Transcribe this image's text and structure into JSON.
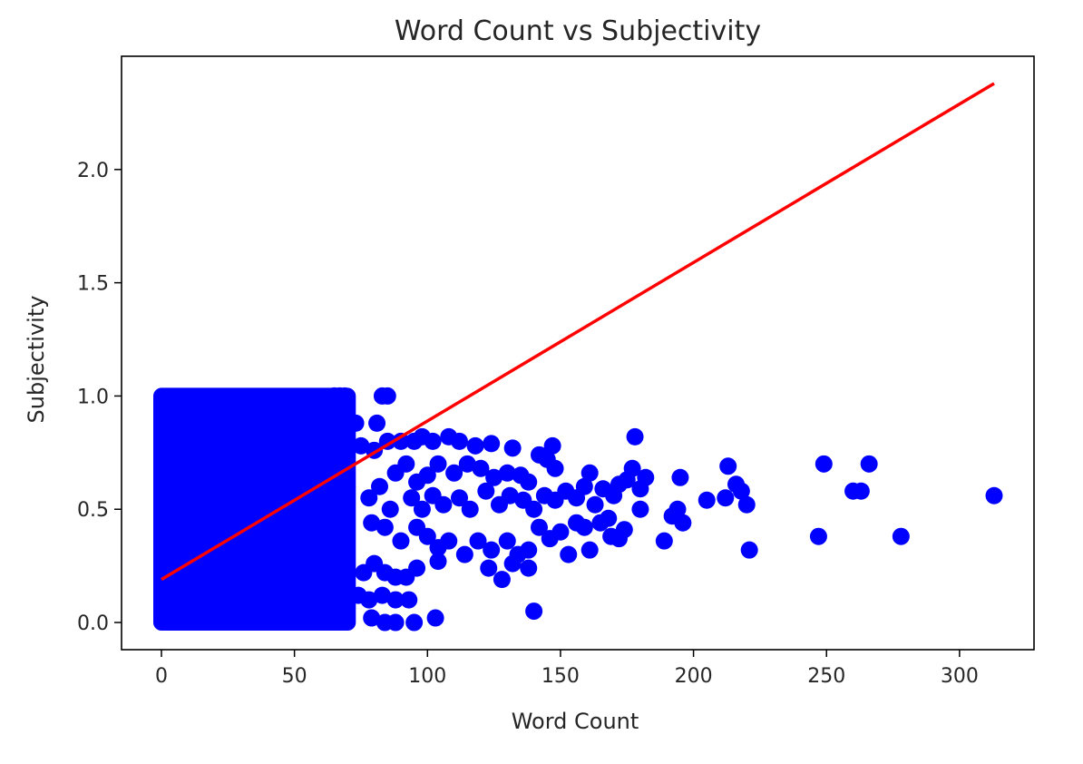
{
  "chart_data": {
    "type": "scatter",
    "title": "Word Count vs Subjectivity",
    "xlabel": "Word Count",
    "ylabel": "Subjectivity",
    "xlim": [
      -15,
      328
    ],
    "ylim": [
      -0.12,
      2.5
    ],
    "xticks": [
      0,
      50,
      100,
      150,
      200,
      250,
      300
    ],
    "yticks": [
      0.0,
      0.5,
      1.0,
      1.5,
      2.0
    ],
    "grid": false,
    "point_color": "#0000ff",
    "line_color": "#ff0000",
    "dense_region": {
      "x_range": [
        0,
        70
      ],
      "y_range": [
        0.0,
        1.0
      ]
    },
    "trend_line": {
      "x": [
        0,
        313
      ],
      "y": [
        0.19,
        2.38
      ]
    },
    "series": [
      {
        "points": [
          [
            65,
            1.0
          ],
          [
            67,
            1.0
          ],
          [
            69,
            1.0
          ],
          [
            83,
            1.0
          ],
          [
            85,
            1.0
          ],
          [
            70,
            0.88
          ],
          [
            73,
            0.88
          ],
          [
            81,
            0.88
          ],
          [
            75,
            0.78
          ],
          [
            80,
            0.76
          ],
          [
            85,
            0.8
          ],
          [
            90,
            0.8
          ],
          [
            95,
            0.8
          ],
          [
            98,
            0.82
          ],
          [
            102,
            0.8
          ],
          [
            108,
            0.82
          ],
          [
            112,
            0.8
          ],
          [
            118,
            0.78
          ],
          [
            124,
            0.79
          ],
          [
            132,
            0.77
          ],
          [
            88,
            0.66
          ],
          [
            92,
            0.7
          ],
          [
            96,
            0.62
          ],
          [
            100,
            0.65
          ],
          [
            104,
            0.7
          ],
          [
            110,
            0.66
          ],
          [
            115,
            0.7
          ],
          [
            120,
            0.68
          ],
          [
            125,
            0.64
          ],
          [
            130,
            0.66
          ],
          [
            135,
            0.65
          ],
          [
            138,
            0.62
          ],
          [
            142,
            0.74
          ],
          [
            145,
            0.72
          ],
          [
            147,
            0.78
          ],
          [
            148,
            0.68
          ],
          [
            78,
            0.55
          ],
          [
            82,
            0.6
          ],
          [
            86,
            0.5
          ],
          [
            94,
            0.55
          ],
          [
            98,
            0.5
          ],
          [
            102,
            0.56
          ],
          [
            106,
            0.52
          ],
          [
            112,
            0.55
          ],
          [
            116,
            0.5
          ],
          [
            122,
            0.58
          ],
          [
            127,
            0.52
          ],
          [
            131,
            0.56
          ],
          [
            136,
            0.54
          ],
          [
            140,
            0.5
          ],
          [
            144,
            0.56
          ],
          [
            148,
            0.54
          ],
          [
            152,
            0.58
          ],
          [
            156,
            0.55
          ],
          [
            159,
            0.6
          ],
          [
            161,
            0.66
          ],
          [
            163,
            0.52
          ],
          [
            166,
            0.59
          ],
          [
            168,
            0.46
          ],
          [
            170,
            0.56
          ],
          [
            172,
            0.61
          ],
          [
            175,
            0.63
          ],
          [
            177,
            0.68
          ],
          [
            178,
            0.82
          ],
          [
            180,
            0.59
          ],
          [
            182,
            0.64
          ],
          [
            79,
            0.44
          ],
          [
            84,
            0.42
          ],
          [
            90,
            0.36
          ],
          [
            96,
            0.42
          ],
          [
            100,
            0.38
          ],
          [
            104,
            0.33
          ],
          [
            108,
            0.36
          ],
          [
            114,
            0.3
          ],
          [
            119,
            0.36
          ],
          [
            124,
            0.32
          ],
          [
            130,
            0.36
          ],
          [
            134,
            0.3
          ],
          [
            138,
            0.32
          ],
          [
            142,
            0.42
          ],
          [
            146,
            0.37
          ],
          [
            150,
            0.4
          ],
          [
            153,
            0.3
          ],
          [
            156,
            0.44
          ],
          [
            159,
            0.42
          ],
          [
            161,
            0.32
          ],
          [
            165,
            0.44
          ],
          [
            169,
            0.38
          ],
          [
            172,
            0.37
          ],
          [
            174,
            0.41
          ],
          [
            76,
            0.22
          ],
          [
            80,
            0.26
          ],
          [
            84,
            0.22
          ],
          [
            88,
            0.2
          ],
          [
            92,
            0.2
          ],
          [
            96,
            0.24
          ],
          [
            104,
            0.27
          ],
          [
            123,
            0.24
          ],
          [
            128,
            0.19
          ],
          [
            132,
            0.26
          ],
          [
            138,
            0.24
          ],
          [
            74,
            0.12
          ],
          [
            78,
            0.1
          ],
          [
            83,
            0.12
          ],
          [
            88,
            0.1
          ],
          [
            93,
            0.1
          ],
          [
            79,
            0.02
          ],
          [
            84,
            0.0
          ],
          [
            88,
            0.0
          ],
          [
            95,
            0.0
          ],
          [
            103,
            0.02
          ],
          [
            140,
            0.05
          ],
          [
            180,
            0.5
          ],
          [
            189,
            0.36
          ],
          [
            192,
            0.47
          ],
          [
            194,
            0.5
          ],
          [
            196,
            0.44
          ],
          [
            195,
            0.64
          ],
          [
            205,
            0.54
          ],
          [
            212,
            0.55
          ],
          [
            213,
            0.69
          ],
          [
            216,
            0.61
          ],
          [
            218,
            0.58
          ],
          [
            220,
            0.52
          ],
          [
            221,
            0.32
          ],
          [
            247,
            0.38
          ],
          [
            249,
            0.7
          ],
          [
            260,
            0.58
          ],
          [
            263,
            0.58
          ],
          [
            266,
            0.7
          ],
          [
            278,
            0.38
          ],
          [
            313,
            0.56
          ]
        ]
      }
    ]
  }
}
